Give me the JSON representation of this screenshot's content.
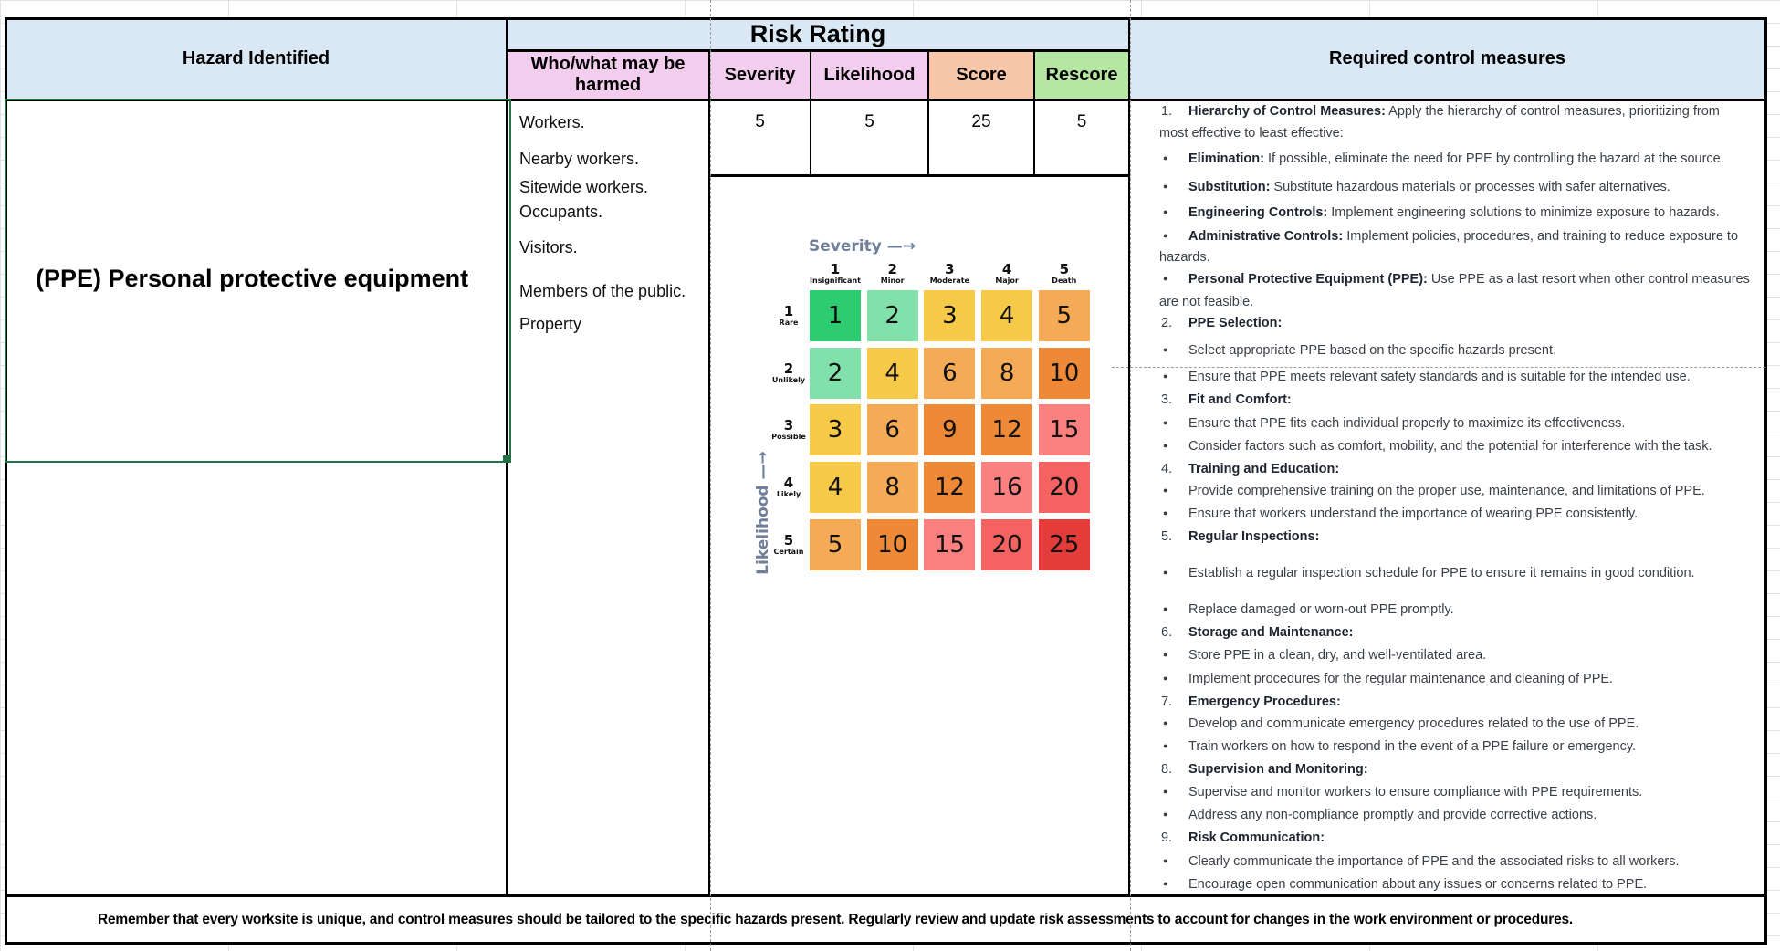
{
  "headers": {
    "hazard": "Hazard Identified",
    "who": "Who/what may be harmed",
    "risk_rating": "Risk Rating",
    "severity": "Severity",
    "likelihood": "Likelihood",
    "score": "Score",
    "rescore": "Rescore",
    "control_measures": "Required control measures"
  },
  "row": {
    "hazard": "(PPE) Personal protective equipment",
    "who_harmed": [
      "Workers.",
      "Nearby workers.",
      "Sitewide workers.",
      "Occupants.",
      "Visitors.",
      "Members of the public.",
      "Property"
    ],
    "severity": "5",
    "likelihood": "5",
    "score": "25",
    "rescore": "5"
  },
  "risk_matrix": {
    "severity_axis": "Severity —→",
    "likelihood_axis": "Likelihood —→",
    "columns": [
      {
        "n": "1",
        "label": "Insignificant"
      },
      {
        "n": "2",
        "label": "Minor"
      },
      {
        "n": "3",
        "label": "Moderate"
      },
      {
        "n": "4",
        "label": "Major"
      },
      {
        "n": "5",
        "label": "Death"
      }
    ],
    "rows": [
      {
        "n": "1",
        "label": "Rare"
      },
      {
        "n": "2",
        "label": "Unlikely"
      },
      {
        "n": "3",
        "label": "Possible"
      },
      {
        "n": "4",
        "label": "Likely"
      },
      {
        "n": "5",
        "label": "Certain"
      }
    ],
    "values": [
      [
        "1",
        "2",
        "3",
        "4",
        "5"
      ],
      [
        "2",
        "4",
        "6",
        "8",
        "10"
      ],
      [
        "3",
        "6",
        "9",
        "12",
        "15"
      ],
      [
        "4",
        "8",
        "12",
        "16",
        "20"
      ],
      [
        "5",
        "10",
        "15",
        "20",
        "25"
      ]
    ],
    "colors": [
      [
        "#2ecc71",
        "#82e0aa",
        "#f7c948",
        "#f7c948",
        "#f5aa55"
      ],
      [
        "#82e0aa",
        "#f7c948",
        "#f5aa55",
        "#f5aa55",
        "#ee8a37"
      ],
      [
        "#f7c948",
        "#f5aa55",
        "#ee8a37",
        "#ee8a37",
        "#fd8080"
      ],
      [
        "#f7c948",
        "#f5aa55",
        "#ee8a37",
        "#fd8080",
        "#f46262"
      ],
      [
        "#f5aa55",
        "#ee8a37",
        "#fd8080",
        "#f46262",
        "#e43b3b"
      ]
    ]
  },
  "control_measures": [
    {
      "type": "num",
      "num": "1.",
      "bold": "Hierarchy of Control Measures:",
      "text": " Apply the hierarchy of control measures, prioritizing from"
    },
    {
      "type": "cont",
      "text": "most effective to least effective:"
    },
    {
      "type": "bullet",
      "bold": "Elimination:",
      "text": " If possible, eliminate the need for PPE by controlling the hazard at the source."
    },
    {
      "type": "bullet",
      "bold": "Substitution:",
      "text": " Substitute hazardous materials or processes with safer alternatives."
    },
    {
      "type": "bullet",
      "bold": "Engineering Controls:",
      "text": " Implement engineering solutions to minimize exposure to hazards."
    },
    {
      "type": "bullet",
      "bold": "Administrative Controls:",
      "text": " Implement policies, procedures, and training to reduce exposure to"
    },
    {
      "type": "cont",
      "text": "hazards."
    },
    {
      "type": "bullet",
      "bold": "Personal Protective Equipment (PPE):",
      "text": " Use PPE as a last resort when other control measures"
    },
    {
      "type": "cont",
      "text": "are not feasible."
    },
    {
      "type": "num",
      "num": "2.",
      "bold": "PPE Selection:",
      "text": ""
    },
    {
      "type": "bullet",
      "bold": "",
      "text": "Select appropriate PPE based on the specific hazards present."
    },
    {
      "type": "bullet",
      "bold": "",
      "text": "Ensure that PPE meets relevant safety standards and is suitable for the intended use."
    },
    {
      "type": "num",
      "num": "3.",
      "bold": "Fit and Comfort:",
      "text": ""
    },
    {
      "type": "bullet",
      "bold": "",
      "text": "Ensure that PPE fits each individual properly to maximize its effectiveness."
    },
    {
      "type": "bullet",
      "bold": "",
      "text": "Consider factors such as comfort, mobility, and the potential for interference with the task."
    },
    {
      "type": "num",
      "num": "4.",
      "bold": "Training and Education:",
      "text": ""
    },
    {
      "type": "bullet",
      "bold": "",
      "text": "Provide comprehensive training on the proper use, maintenance, and limitations of PPE."
    },
    {
      "type": "bullet",
      "bold": "",
      "text": "Ensure that workers understand the importance of wearing PPE consistently."
    },
    {
      "type": "num",
      "num": "5.",
      "bold": "Regular Inspections:",
      "text": ""
    },
    {
      "type": "bullet",
      "bold": "",
      "text": "Establish a regular inspection schedule for PPE to ensure it remains in good condition."
    },
    {
      "type": "bullet",
      "bold": "",
      "text": "Replace damaged or worn-out PPE promptly."
    },
    {
      "type": "num",
      "num": "6.",
      "bold": "Storage and Maintenance:",
      "text": ""
    },
    {
      "type": "bullet",
      "bold": "",
      "text": "Store PPE in a clean, dry, and well-ventilated area."
    },
    {
      "type": "bullet",
      "bold": "",
      "text": "Implement procedures for the regular maintenance and cleaning of PPE."
    },
    {
      "type": "num",
      "num": "7.",
      "bold": "Emergency Procedures:",
      "text": ""
    },
    {
      "type": "bullet",
      "bold": "",
      "text": "Develop and communicate emergency procedures related to the use of PPE."
    },
    {
      "type": "bullet",
      "bold": "",
      "text": "Train workers on how to respond in the event of a PPE failure or emergency."
    },
    {
      "type": "num",
      "num": "8.",
      "bold": "Supervision and Monitoring:",
      "text": ""
    },
    {
      "type": "bullet",
      "bold": "",
      "text": "Supervise and monitor workers to ensure compliance with PPE requirements."
    },
    {
      "type": "bullet",
      "bold": "",
      "text": "Address any non-compliance promptly and provide corrective actions."
    },
    {
      "type": "num",
      "num": "9.",
      "bold": "Risk Communication:",
      "text": ""
    },
    {
      "type": "bullet",
      "bold": "",
      "text": "Clearly communicate the importance of PPE and the associated risks to all workers."
    },
    {
      "type": "bullet",
      "bold": "",
      "text": "Encourage open communication about any issues or concerns related to PPE."
    }
  ],
  "footer": "Remember that every worksite is unique, and control measures should be tailored to the specific hazards present. Regularly review and update risk assessments to account for changes in the work environment or procedures."
}
